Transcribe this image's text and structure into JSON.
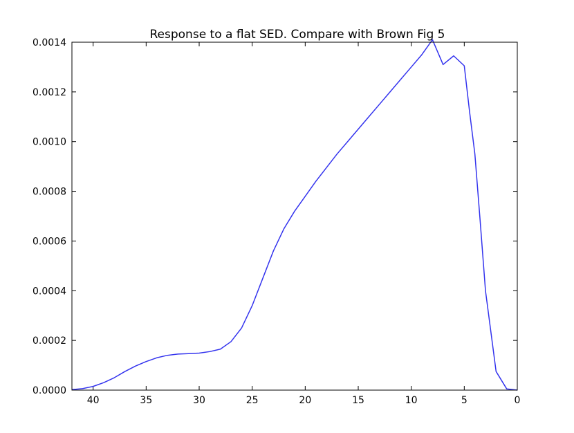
{
  "chart_data": {
    "type": "line",
    "title": "Response to a flat SED. Compare with Brown Fig 5",
    "xlabel": "",
    "ylabel": "",
    "xlim": [
      42,
      0
    ],
    "ylim": [
      0,
      0.0014
    ],
    "x_inverted": true,
    "grid": false,
    "legend": "none",
    "x_ticks": [
      40,
      35,
      30,
      25,
      20,
      15,
      10,
      5,
      0
    ],
    "x_tick_labels": [
      "40",
      "35",
      "30",
      "25",
      "20",
      "15",
      "10",
      "5",
      "0"
    ],
    "y_ticks": [
      0,
      0.0002,
      0.0004,
      0.0006,
      0.0008,
      0.001,
      0.0012,
      0.0014
    ],
    "y_tick_labels": [
      "0.0000",
      "0.0002",
      "0.0004",
      "0.0006",
      "0.0008",
      "0.0010",
      "0.0012",
      "0.0014"
    ],
    "series": [
      {
        "color": "#3333ee",
        "x": [
          42,
          41,
          40,
          39,
          38,
          37,
          36,
          35,
          34,
          33,
          32,
          31,
          30,
          29,
          28,
          27,
          26,
          25,
          24,
          23,
          22,
          21,
          20,
          19,
          18,
          17,
          16,
          15,
          14,
          13,
          12,
          11,
          10,
          9,
          8,
          7,
          6,
          5,
          4.5,
          4,
          3.5,
          3,
          2,
          1,
          0
        ],
        "y": [
          2e-06,
          6e-06,
          1.5e-05,
          3e-05,
          5e-05,
          7.5e-05,
          9.7e-05,
          0.000115,
          0.00013,
          0.00014,
          0.000145,
          0.000147,
          0.000149,
          0.000155,
          0.000165,
          0.000195,
          0.00025,
          0.00034,
          0.00045,
          0.00056,
          0.00065,
          0.00072,
          0.00078,
          0.00084,
          0.000895,
          0.00095,
          0.001,
          0.00105,
          0.0011,
          0.00115,
          0.0012,
          0.00125,
          0.0013,
          0.00135,
          0.00141,
          0.00131,
          0.001345,
          0.001305,
          0.00112,
          0.00095,
          0.00068,
          0.0004,
          7.5e-05,
          5e-06,
          0.0
        ]
      }
    ]
  }
}
